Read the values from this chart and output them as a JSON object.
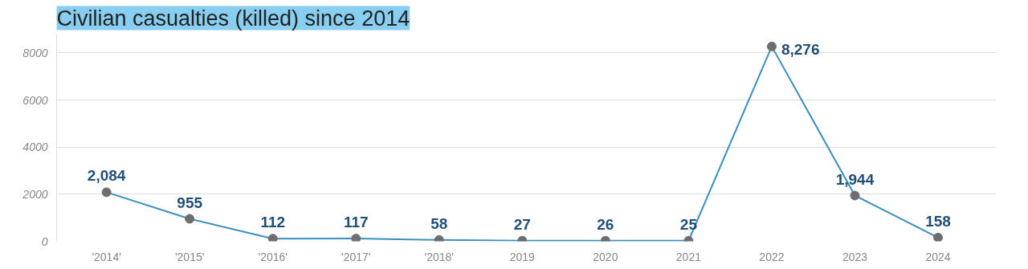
{
  "chart_data": {
    "type": "line",
    "title": "Civilian casualties (killed) since 2014",
    "categories": [
      "'2014'",
      "'2015'",
      "'2016'",
      "'2017'",
      "'2018'",
      "2019",
      "2020",
      "2021",
      "2022",
      "2023",
      "2024"
    ],
    "series": [
      {
        "color": "#3a8fc0",
        "values": [
          2084,
          955,
          112,
          117,
          58,
          27,
          26,
          25,
          8276,
          1944,
          158
        ],
        "value_labels": [
          "2,084",
          "955",
          "112",
          "117",
          "58",
          "27",
          "26",
          "25",
          "8,276",
          "1,944",
          "158"
        ]
      }
    ],
    "ylim": [
      0,
      8800
    ],
    "yticks": [
      0,
      2000,
      4000,
      6000,
      8000
    ],
    "grid": "y",
    "marker": "circle"
  }
}
